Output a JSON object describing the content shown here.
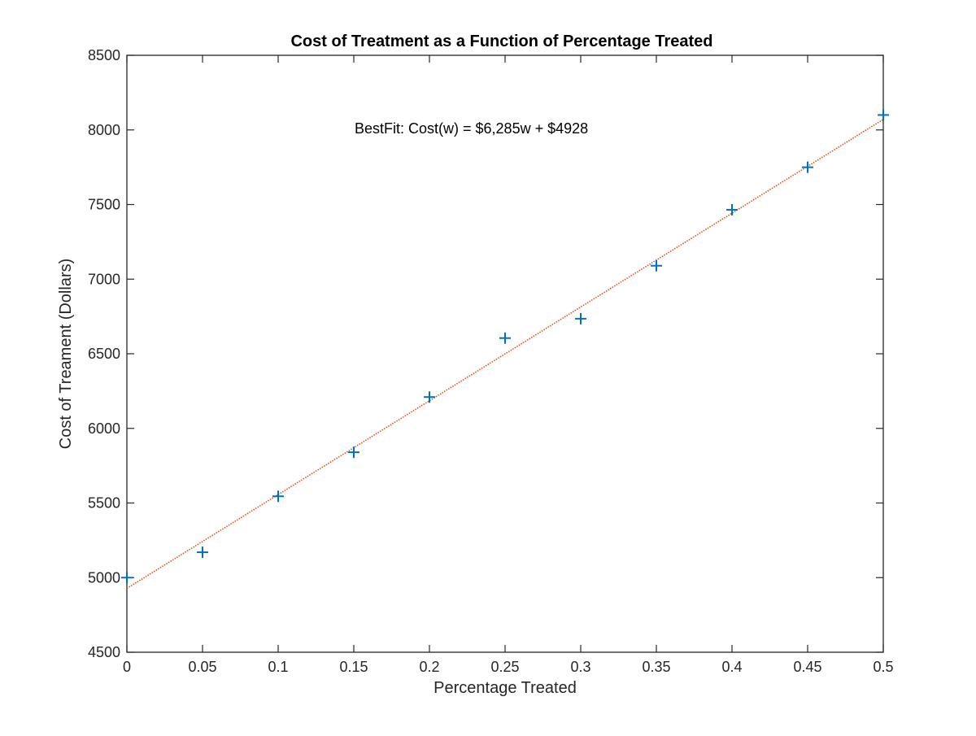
{
  "chart_data": {
    "type": "scatter",
    "title": "Cost of Treatment as a Function of Percentage Treated",
    "xlabel": "Percentage Treated",
    "ylabel": "Cost of Treament (Dollars)",
    "xlim": [
      0,
      0.5
    ],
    "ylim": [
      4500,
      8500
    ],
    "x_ticks": [
      0,
      0.05,
      0.1,
      0.15,
      0.2,
      0.25,
      0.3,
      0.35,
      0.4,
      0.45,
      0.5
    ],
    "x_tick_labels": [
      "0",
      "0.05",
      "0.1",
      "0.15",
      "0.2",
      "0.25",
      "0.3",
      "0.35",
      "0.4",
      "0.45",
      "0.5"
    ],
    "y_ticks": [
      4500,
      5000,
      5500,
      6000,
      6500,
      7000,
      7500,
      8000,
      8500
    ],
    "y_tick_labels": [
      "4500",
      "5000",
      "5500",
      "6000",
      "6500",
      "7000",
      "7500",
      "8000",
      "8500"
    ],
    "grid": false,
    "series": [
      {
        "marker": "+",
        "color": "#0072BD",
        "points": [
          {
            "x": 0,
            "y": 5000
          },
          {
            "x": 0.05,
            "y": 5170
          },
          {
            "x": 0.1,
            "y": 5545
          },
          {
            "x": 0.15,
            "y": 5840
          },
          {
            "x": 0.2,
            "y": 6210
          },
          {
            "x": 0.25,
            "y": 6605
          },
          {
            "x": 0.3,
            "y": 6735
          },
          {
            "x": 0.35,
            "y": 7090
          },
          {
            "x": 0.4,
            "y": 7465
          },
          {
            "x": 0.45,
            "y": 7750
          },
          {
            "x": 0.5,
            "y": 8100
          }
        ]
      }
    ],
    "fit_line": {
      "style": "dotted",
      "color": "#D95319",
      "slope": 6285,
      "intercept": 4928,
      "x_range": [
        0,
        0.5
      ]
    },
    "annotation": "BestFit: Cost(w) = $6,285w + $4928"
  }
}
